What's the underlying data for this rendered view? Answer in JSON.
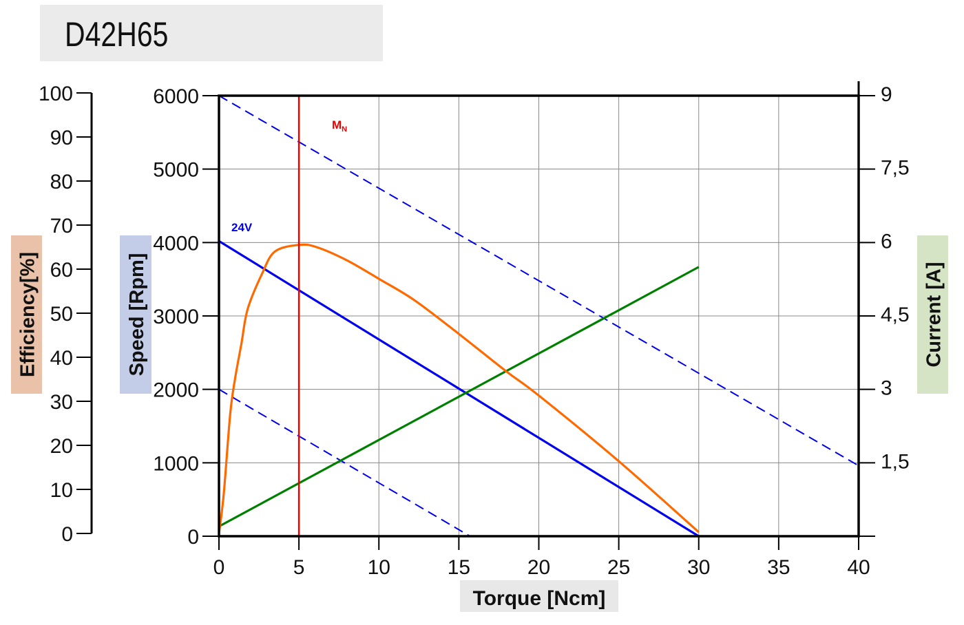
{
  "title": "D42H65",
  "chart_data": {
    "type": "line",
    "title": "D42H65",
    "xlabel": "Torque [Ncm]",
    "xlim": [
      0,
      40
    ],
    "xticks": [
      "0",
      "5",
      "10",
      "15",
      "20",
      "25",
      "30",
      "35",
      "40"
    ],
    "grid": true,
    "axes": {
      "speed": {
        "label": "Speed [Rpm]",
        "range": [
          0,
          6000
        ],
        "ticks": [
          "0",
          "1000",
          "2000",
          "3000",
          "4000",
          "5000",
          "6000"
        ],
        "color": "#c3cde8"
      },
      "efficiency": {
        "label": "Efficiency[%]",
        "range": [
          0,
          100
        ],
        "ticks": [
          "0",
          "10",
          "20",
          "30",
          "40",
          "50",
          "60",
          "70",
          "80",
          "90",
          "100"
        ],
        "color": "#e9c2a9"
      },
      "current": {
        "label": "Current [A]",
        "range": [
          0,
          9
        ],
        "ticks": [
          "1,5",
          "3",
          "4,5",
          "6",
          "7,5",
          "9"
        ],
        "color": "#d6e4c6"
      }
    },
    "series": [
      {
        "name": "24V",
        "axis": "speed",
        "color": "#0000ee",
        "style": "solid",
        "x": [
          0,
          30
        ],
        "y": [
          4020,
          0
        ]
      },
      {
        "axis": "speed",
        "color": "#0000ee",
        "style": "dashed",
        "x": [
          0,
          40
        ],
        "y": [
          6000,
          960
        ]
      },
      {
        "axis": "speed",
        "color": "#0000ee",
        "style": "dashed",
        "x": [
          0,
          15.7
        ],
        "y": [
          2000,
          0
        ]
      },
      {
        "axis": "current",
        "color": "#008000",
        "style": "solid",
        "x": [
          0,
          30
        ],
        "y": [
          0.2,
          5.5
        ]
      },
      {
        "axis": "efficiency",
        "color": "#ff6a00",
        "style": "solid",
        "x": [
          0,
          0.3,
          0.7,
          1,
          1.4,
          1.8,
          2.7,
          3.5,
          5,
          6.1,
          8,
          10,
          12.2,
          15,
          18,
          20,
          25,
          30
        ],
        "y": [
          0,
          9,
          27,
          35,
          43,
          51,
          59,
          64,
          65.5,
          65,
          62,
          57.8,
          53,
          45.3,
          36.7,
          31.3,
          16.4,
          0.3
        ]
      }
    ],
    "annotations": [
      {
        "text": "M",
        "subscript": "N",
        "x": 5,
        "type": "vertical-line",
        "color": "#ee0000"
      }
    ]
  }
}
